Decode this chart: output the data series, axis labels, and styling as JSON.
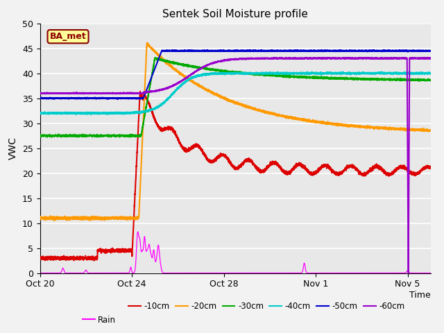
{
  "title": "Sentek Soil Moisture profile",
  "xlabel": "Time",
  "ylabel": "VWC",
  "ylim": [
    0,
    50
  ],
  "background_color": "#e8e8e8",
  "grid_color": "#ffffff",
  "annotation_label": "BA_met",
  "annotation_color": "#8B0000",
  "annotation_bg": "#ffff99",
  "colors": {
    "-10cm": "#dd0000",
    "-20cm": "#ff9900",
    "-30cm": "#00aa00",
    "-40cm": "#00cccc",
    "-50cm": "#0000cc",
    "-60cm": "#9900cc",
    "Rain": "#ff00ff"
  },
  "tick_labels": [
    "Oct 20",
    "Oct 24",
    "Oct 28",
    "Nov 1",
    "Nov 5"
  ],
  "tick_positions": [
    0,
    4,
    8,
    12,
    16
  ],
  "yticks": [
    0,
    5,
    10,
    15,
    20,
    25,
    30,
    35,
    40,
    45,
    50
  ]
}
